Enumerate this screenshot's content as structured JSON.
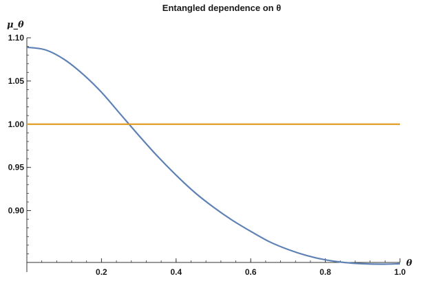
{
  "chart_data": {
    "type": "line",
    "title": "Entangled dependence on θ",
    "xlabel": "θ",
    "ylabel": "μ_θ",
    "xlim": [
      0,
      1.0
    ],
    "ylim": [
      0.84,
      1.1
    ],
    "axes_origin": [
      0,
      0.84
    ],
    "x_ticks": [
      0.2,
      0.4,
      0.6,
      0.8,
      1.0
    ],
    "x_tick_labels": [
      "0.2",
      "0.4",
      "0.6",
      "0.8",
      "1.0"
    ],
    "y_ticks": [
      0.9,
      0.95,
      1.0,
      1.05,
      1.1
    ],
    "y_tick_labels": [
      "0.90",
      "0.95",
      "1.00",
      "1.05",
      "1.10"
    ],
    "grid": false,
    "legend": "none",
    "series": [
      {
        "color": "#5e81b5",
        "x": [
          0,
          0.05,
          0.1,
          0.15,
          0.2,
          0.25,
          0.3,
          0.35,
          0.4,
          0.45,
          0.5,
          0.55,
          0.6,
          0.65,
          0.7,
          0.75,
          0.8,
          0.85,
          0.9,
          0.95,
          1.0
        ],
        "y": [
          1.089,
          1.086,
          1.075,
          1.058,
          1.037,
          1.012,
          0.987,
          0.963,
          0.941,
          0.921,
          0.904,
          0.889,
          0.876,
          0.864,
          0.855,
          0.848,
          0.843,
          0.84,
          0.8385,
          0.838,
          0.8385
        ]
      },
      {
        "color": "#e19c24",
        "x": [
          0,
          1.0
        ],
        "y": [
          1.0,
          1.0
        ]
      }
    ]
  }
}
